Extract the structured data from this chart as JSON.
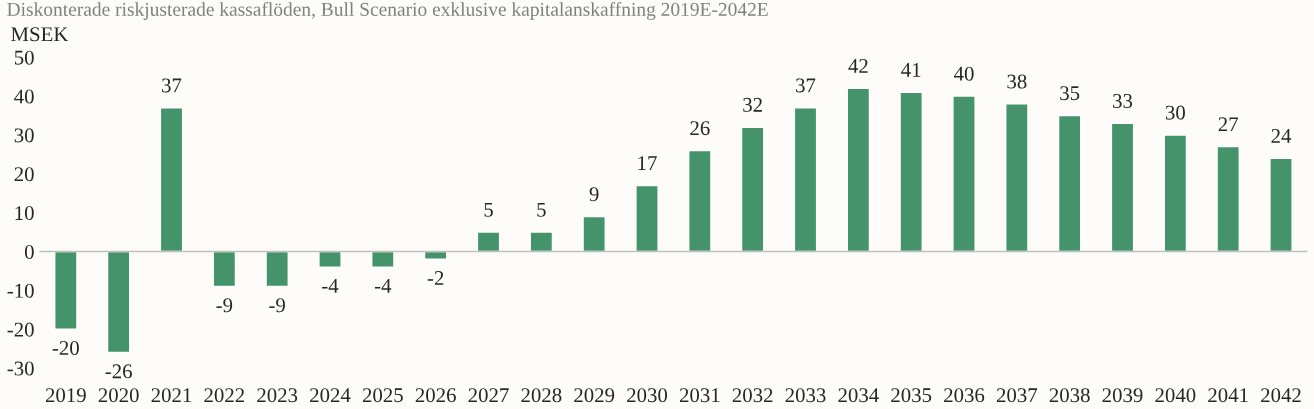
{
  "chart_data": {
    "type": "bar",
    "title": "Diskonterade riskjusterade kassaflöden, Bull Scenario exklusive kapitalanskaffning 2019E-2042E",
    "ylabel": "MSEK",
    "categories": [
      "2019",
      "2020",
      "2021",
      "2022",
      "2023",
      "2024",
      "2025",
      "2026",
      "2027",
      "2028",
      "2029",
      "2030",
      "2031",
      "2032",
      "2033",
      "2034",
      "2035",
      "2036",
      "2037",
      "2038",
      "2039",
      "2040",
      "2041",
      "2042"
    ],
    "values": [
      -20,
      -26,
      37,
      -9,
      -9,
      -4,
      -4,
      -2,
      5,
      5,
      9,
      17,
      26,
      32,
      37,
      42,
      41,
      40,
      38,
      35,
      33,
      30,
      27,
      24
    ],
    "value_labels": [
      "-20",
      "-26",
      "37",
      "-9",
      "-9",
      "-4",
      "-4",
      "-2",
      "5",
      "5",
      "9",
      "17",
      "26",
      "32",
      "37",
      "42",
      "41",
      "40",
      "38",
      "35",
      "33",
      "30",
      "27",
      "24"
    ],
    "color": "#44936a",
    "ylim": [
      -30,
      50
    ],
    "yticks": [
      -30,
      -20,
      -10,
      0,
      10,
      20,
      30,
      40,
      50
    ],
    "grid": false,
    "ref_lines": [
      {
        "axis": "y",
        "value": 0,
        "color": "#bfbfbf"
      }
    ],
    "legend": false
  }
}
